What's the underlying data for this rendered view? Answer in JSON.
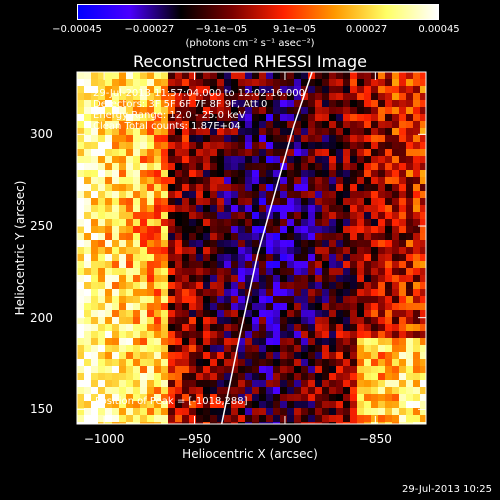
{
  "chart_data": {
    "type": "heatmap",
    "title": "Reconstructed RHESSI Image",
    "info_lines": [
      "29-Jul-2013 11:57:04.000 to 12:02:16.000",
      "Detectors: 3F 5F 6F 7F 8F 9F, Att 0",
      "Energy Range: 12.0 - 25.0 keV",
      "Clean   Total counts: 1.87E+04"
    ],
    "peak_label": "Position of Peak = [-1018,288]",
    "xlabel": "Heliocentric X (arcsec)",
    "ylabel": "Heliocentric Y (arcsec)",
    "xlim": [
      -1015,
      -822
    ],
    "ylim": [
      142,
      334
    ],
    "xticks": [
      -1000,
      -950,
      -900,
      -850
    ],
    "xtick_labels": [
      "−1000",
      "−950",
      "−900",
      "−850"
    ],
    "yticks": [
      150,
      200,
      250,
      300
    ],
    "ytick_labels": [
      "150",
      "200",
      "250",
      "300"
    ],
    "colorbar": {
      "range": [
        -0.00045,
        0.00045
      ],
      "tick_values": [
        -0.00045,
        -0.00027,
        -9.1e-05,
        9.1e-05,
        0.00027,
        0.00045
      ],
      "tick_labels": [
        "−0.00045",
        "−0.00027",
        "−9.1e−05",
        "9.1e−05",
        "0.00027",
        "0.00045"
      ],
      "unit": "(photons cm⁻² s⁻¹ asec⁻²)",
      "colors": [
        "#0000ff",
        "#4a00ff",
        "#000000",
        "#7a0000",
        "#ff2200",
        "#ff9900",
        "#ffff66",
        "#ffffff"
      ]
    },
    "limb_curve": {
      "x": [
        -935,
        -925,
        -915,
        -905,
        -895,
        -885
      ],
      "y": [
        142,
        190,
        235,
        270,
        305,
        334
      ]
    },
    "grid": false
  },
  "footer": {
    "timestamp": "29-Jul-2013 10:25"
  }
}
